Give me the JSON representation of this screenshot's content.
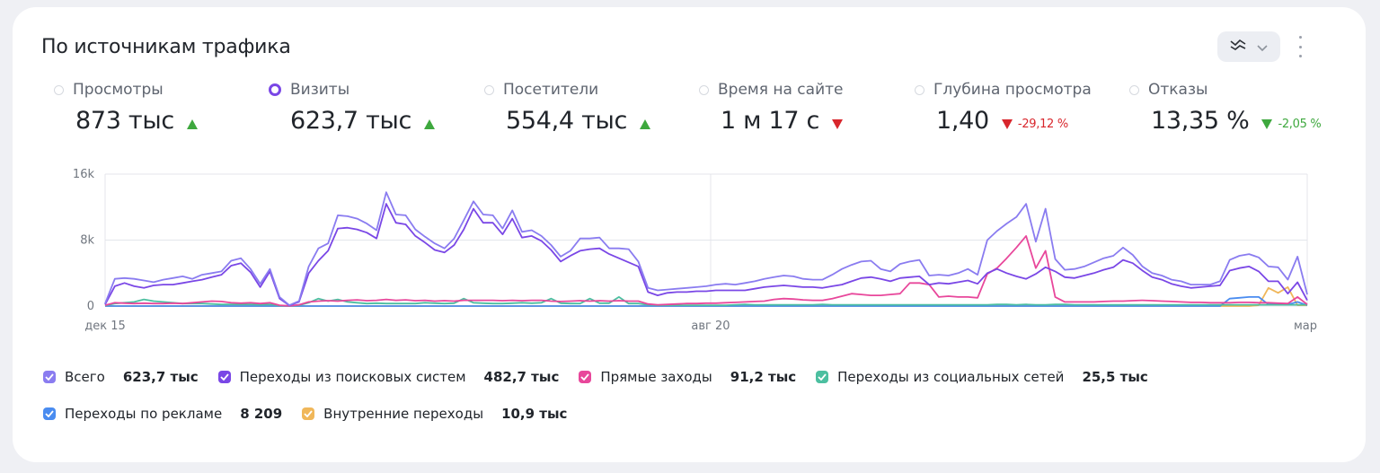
{
  "widget": {
    "title": "По источникам трафика"
  },
  "metrics": [
    {
      "label": "Просмотры",
      "value": "873 тыс",
      "selected": false,
      "trend": "up",
      "delta": ""
    },
    {
      "label": "Визиты",
      "value": "623,7 тыс",
      "selected": true,
      "trend": "up",
      "delta": ""
    },
    {
      "label": "Посетители",
      "value": "554,4 тыс",
      "selected": false,
      "trend": "up",
      "delta": ""
    },
    {
      "label": "Время на сайте",
      "value": "1 м 17 с",
      "selected": false,
      "trend": "down",
      "delta": ""
    },
    {
      "label": "Глубина просмотра",
      "value": "1,40",
      "selected": false,
      "trend": "down",
      "delta": "-29,12 %"
    },
    {
      "label": "Отказы",
      "value": "13,35 %",
      "selected": false,
      "trend": "down-good",
      "delta": "-2,05 %"
    }
  ],
  "legend": [
    {
      "label": "Всего",
      "value": "623,7 тыс",
      "color": "#8a7cf0"
    },
    {
      "label": "Переходы из поисковых систем",
      "value": "482,7 тыс",
      "color": "#7a47e6"
    },
    {
      "label": "Прямые заходы",
      "value": "91,2 тыс",
      "color": "#e8479b"
    },
    {
      "label": "Переходы из социальных сетей",
      "value": "25,5 тыс",
      "color": "#4cbfa0"
    },
    {
      "label": "Переходы по рекламе",
      "value": "8 209",
      "color": "#4a8cf0"
    },
    {
      "label": "Внутренние переходы",
      "value": "10,9 тыс",
      "color": "#f0b75a"
    }
  ],
  "chart_data": {
    "type": "line",
    "y_ticks": [
      "16k",
      "8k",
      "0"
    ],
    "x_ticks": [
      "дек 15",
      "авг 20",
      "мар"
    ],
    "ylim": [
      0,
      16000
    ],
    "grid": true,
    "series": [
      {
        "name": "Всего",
        "color": "#8a7cf0",
        "values": [
          300,
          3300,
          3400,
          3300,
          3100,
          2900,
          3200,
          3400,
          3600,
          3300,
          3800,
          4000,
          4200,
          5500,
          5800,
          4500,
          2700,
          4500,
          1100,
          100,
          600,
          4800,
          7000,
          7600,
          11000,
          10900,
          10600,
          10000,
          9200,
          13800,
          11100,
          11000,
          9300,
          8400,
          7600,
          7000,
          8200,
          10400,
          12700,
          11100,
          11000,
          9400,
          11600,
          9000,
          9200,
          8500,
          7400,
          6000,
          6700,
          8200,
          8200,
          8300,
          7000,
          7000,
          6900,
          5400,
          2200,
          1900,
          2000,
          2100,
          2200,
          2300,
          2400,
          2600,
          2700,
          2600,
          2800,
          3000,
          3300,
          3500,
          3700,
          3600,
          3300,
          3200,
          3200,
          3800,
          4500,
          5000,
          5400,
          5500,
          4500,
          4200,
          5100,
          5400,
          5600,
          3700,
          3800,
          3700,
          4000,
          4500,
          3800,
          8000,
          9100,
          10000,
          10800,
          12400,
          7800,
          11800,
          5700,
          4400,
          4500,
          4800,
          5300,
          5800,
          6100,
          7100,
          6200,
          4800,
          4000,
          3700,
          3200,
          3000,
          2600,
          2600,
          2600,
          3000,
          5600,
          6100,
          6300,
          5900,
          4800,
          4700,
          3200,
          6000,
          1400
        ]
      },
      {
        "name": "Переходы из поисковых систем",
        "color": "#7a47e6",
        "values": [
          200,
          2400,
          2800,
          2400,
          2200,
          2500,
          2600,
          2600,
          2800,
          3000,
          3200,
          3500,
          3800,
          4900,
          5200,
          4100,
          2300,
          4200,
          900,
          80,
          500,
          4000,
          5500,
          6700,
          9400,
          9500,
          9300,
          8900,
          8200,
          12400,
          10100,
          9900,
          8500,
          7700,
          6800,
          6500,
          7400,
          9300,
          11800,
          10100,
          10100,
          8700,
          10600,
          8300,
          8500,
          7900,
          6800,
          5400,
          6100,
          6700,
          6900,
          7000,
          6300,
          5800,
          5300,
          4800,
          1700,
          1300,
          1600,
          1700,
          1700,
          1800,
          1800,
          1900,
          1900,
          1900,
          1900,
          2100,
          2300,
          2400,
          2500,
          2400,
          2300,
          2300,
          2200,
          2400,
          2600,
          3000,
          3400,
          3500,
          3300,
          3000,
          3400,
          3500,
          3600,
          2600,
          2800,
          2700,
          2900,
          3100,
          2700,
          4000,
          4500,
          4000,
          3600,
          3300,
          3900,
          4700,
          4200,
          3500,
          3400,
          3700,
          4000,
          4400,
          4700,
          5600,
          5200,
          4300,
          3500,
          3200,
          2700,
          2400,
          2200,
          2300,
          2400,
          2500,
          4300,
          4600,
          4800,
          4200,
          3000,
          3000,
          1500,
          2900,
          700
        ]
      },
      {
        "name": "Прямые заходы",
        "color": "#e8479b",
        "values": [
          100,
          400,
          350,
          300,
          350,
          300,
          300,
          350,
          300,
          400,
          500,
          600,
          550,
          400,
          350,
          400,
          300,
          400,
          100,
          20,
          150,
          500,
          600,
          650,
          600,
          700,
          750,
          650,
          700,
          800,
          700,
          750,
          650,
          700,
          600,
          650,
          600,
          700,
          700,
          700,
          700,
          650,
          700,
          650,
          700,
          700,
          600,
          550,
          600,
          650,
          600,
          650,
          600,
          650,
          600,
          600,
          250,
          150,
          200,
          250,
          300,
          300,
          350,
          350,
          400,
          450,
          500,
          550,
          600,
          800,
          900,
          850,
          750,
          700,
          700,
          900,
          1200,
          1500,
          1400,
          1300,
          1300,
          1400,
          1500,
          2800,
          2800,
          2600,
          1100,
          1200,
          1100,
          1100,
          1000,
          3900,
          4600,
          5800,
          7100,
          8500,
          4600,
          6700,
          1100,
          500,
          500,
          500,
          500,
          550,
          600,
          600,
          650,
          700,
          650,
          600,
          550,
          500,
          450,
          450,
          400,
          400,
          400,
          450,
          450,
          400,
          400,
          350,
          300,
          1100,
          200
        ]
      },
      {
        "name": "Переходы из социальных сетей",
        "color": "#4cbfa0",
        "values": [
          50,
          300,
          400,
          500,
          800,
          600,
          500,
          400,
          300,
          300,
          300,
          250,
          200,
          200,
          200,
          200,
          150,
          200,
          50,
          10,
          100,
          400,
          900,
          600,
          800,
          500,
          400,
          300,
          350,
          300,
          300,
          300,
          300,
          400,
          350,
          300,
          350,
          900,
          400,
          350,
          300,
          300,
          350,
          400,
          350,
          400,
          900,
          350,
          300,
          300,
          900,
          350,
          350,
          1100,
          300,
          300,
          150,
          100,
          100,
          100,
          100,
          100,
          100,
          100,
          100,
          150,
          200,
          150,
          150,
          150,
          150,
          150,
          150,
          150,
          200,
          150,
          150,
          150,
          150,
          150,
          150,
          150,
          150,
          150,
          150,
          150,
          150,
          150,
          150,
          150,
          150,
          150,
          200,
          200,
          150,
          200,
          150,
          150,
          200,
          200,
          150,
          150,
          150,
          150,
          150,
          150,
          150,
          150,
          150,
          150,
          150,
          150,
          150,
          150,
          150,
          150,
          150,
          150,
          150,
          150,
          150,
          150,
          150,
          150,
          150
        ]
      },
      {
        "name": "Переходы по рекламе",
        "color": "#4a8cf0",
        "values": [
          0,
          0,
          0,
          0,
          0,
          0,
          0,
          0,
          0,
          0,
          0,
          0,
          0,
          0,
          0,
          0,
          0,
          0,
          0,
          0,
          0,
          0,
          0,
          0,
          0,
          0,
          0,
          0,
          0,
          0,
          0,
          0,
          0,
          0,
          0,
          0,
          0,
          0,
          0,
          0,
          0,
          0,
          0,
          0,
          0,
          0,
          0,
          0,
          0,
          0,
          0,
          0,
          0,
          0,
          0,
          0,
          0,
          0,
          0,
          0,
          0,
          0,
          0,
          0,
          0,
          0,
          0,
          0,
          0,
          0,
          0,
          0,
          0,
          0,
          0,
          0,
          0,
          0,
          0,
          0,
          0,
          0,
          0,
          0,
          0,
          0,
          0,
          0,
          0,
          0,
          0,
          0,
          0,
          0,
          0,
          0,
          0,
          0,
          0,
          0,
          0,
          0,
          0,
          0,
          0,
          0,
          0,
          0,
          0,
          0,
          0,
          0,
          0,
          0,
          0,
          0,
          900,
          1000,
          1100,
          1100,
          200,
          300,
          200,
          500,
          100
        ]
      },
      {
        "name": "Внутренние переходы",
        "color": "#f0b75a",
        "values": [
          0,
          0,
          0,
          0,
          0,
          0,
          0,
          0,
          0,
          0,
          0,
          0,
          0,
          0,
          0,
          0,
          0,
          0,
          0,
          0,
          0,
          0,
          0,
          0,
          0,
          0,
          0,
          0,
          0,
          0,
          0,
          0,
          0,
          0,
          0,
          0,
          0,
          0,
          0,
          0,
          0,
          0,
          0,
          0,
          0,
          0,
          0,
          0,
          0,
          0,
          0,
          0,
          0,
          0,
          0,
          0,
          0,
          0,
          0,
          0,
          0,
          0,
          0,
          0,
          0,
          0,
          0,
          0,
          0,
          0,
          0,
          0,
          0,
          0,
          0,
          0,
          0,
          0,
          0,
          0,
          0,
          0,
          0,
          0,
          0,
          0,
          0,
          0,
          0,
          0,
          0,
          0,
          0,
          0,
          0,
          0,
          0,
          0,
          0,
          0,
          0,
          0,
          0,
          0,
          0,
          0,
          0,
          0,
          0,
          0,
          0,
          0,
          0,
          0,
          0,
          0,
          0,
          0,
          0,
          100,
          2200,
          1600,
          2300,
          100,
          100
        ]
      }
    ]
  }
}
